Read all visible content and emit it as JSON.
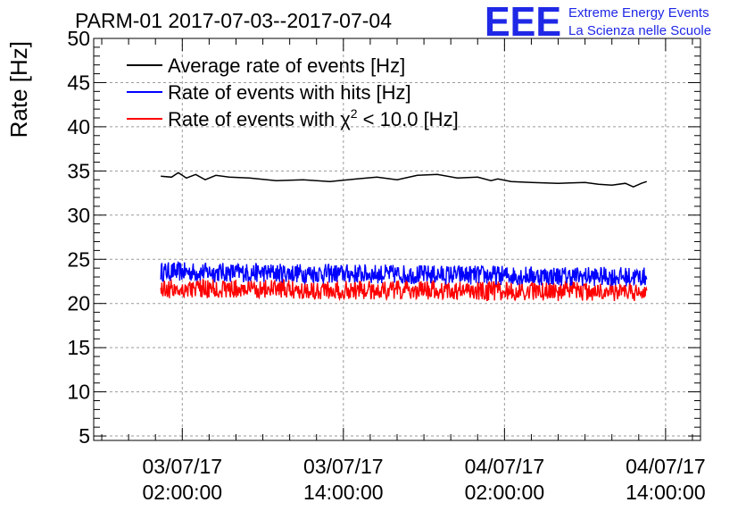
{
  "header": {
    "title": "PARM-01 2017-07-03--2017-07-04",
    "logo_text": "EEE",
    "logo_line1": "Extreme Energy Events",
    "logo_line2": "La Scienza nelle Scuole"
  },
  "chart_data": {
    "type": "line",
    "title": "PARM-01 2017-07-03--2017-07-04",
    "ylabel": "Rate [Hz]",
    "xlabel": "",
    "ylim": [
      4.5,
      50
    ],
    "yticks": [
      5,
      10,
      15,
      20,
      25,
      30,
      35,
      40,
      45,
      50
    ],
    "xlim_hours": [
      -6.6,
      38.6
    ],
    "xticks": [
      {
        "hours": 0,
        "date": "03/07/17",
        "time": "02:00:00"
      },
      {
        "hours": 12,
        "date": "03/07/17",
        "time": "14:00:00"
      },
      {
        "hours": 24,
        "date": "04/07/17",
        "time": "02:00:00"
      },
      {
        "hours": 36,
        "date": "04/07/17",
        "time": "14:00:00"
      }
    ],
    "grid": true,
    "legend": "top-left",
    "series": [
      {
        "name": "Average rate of events [Hz]",
        "color": "#000000",
        "style": "line",
        "x": [
          -1.6,
          -0.8,
          -0.3,
          0.3,
          1.0,
          1.7,
          2.5,
          3.5,
          5,
          7,
          9,
          11,
          13,
          14.5,
          16,
          17.5,
          19,
          20.5,
          22,
          23,
          23.5,
          24.5,
          26,
          28,
          30,
          31,
          32,
          33,
          33.6,
          34.2,
          34.6
        ],
        "y": [
          34.4,
          34.3,
          34.8,
          34.2,
          34.6,
          34.0,
          34.5,
          34.3,
          34.2,
          33.9,
          34.0,
          33.8,
          34.1,
          34.3,
          34.0,
          34.5,
          34.6,
          34.2,
          34.3,
          33.9,
          34.1,
          33.8,
          33.7,
          33.6,
          33.7,
          33.5,
          33.4,
          33.6,
          33.2,
          33.6,
          33.8
        ]
      },
      {
        "name": "Rate of events with hits [Hz]",
        "color": "#0000ff",
        "style": "noisy",
        "x_range": [
          -1.6,
          34.6
        ],
        "mean_hz": 23.6,
        "mean_end_hz": 23.0,
        "spread_hz": 1.1
      },
      {
        "name": "Rate of events with χ² < 10.0 [Hz]",
        "color": "#ff0000",
        "style": "noisy",
        "x_range": [
          -1.6,
          34.6
        ],
        "mean_hz": 21.7,
        "mean_end_hz": 21.3,
        "spread_hz": 1.1
      }
    ],
    "legend_entries": [
      {
        "label": "Average rate of events [Hz]",
        "color": "#000000"
      },
      {
        "label": "Rate of events with hits [Hz]",
        "color": "#0000ff"
      },
      {
        "label_prefix": "Rate of events with χ",
        "label_sup": "2",
        "label_suffix": " < 10.0 [Hz]",
        "color": "#ff0000"
      }
    ]
  }
}
